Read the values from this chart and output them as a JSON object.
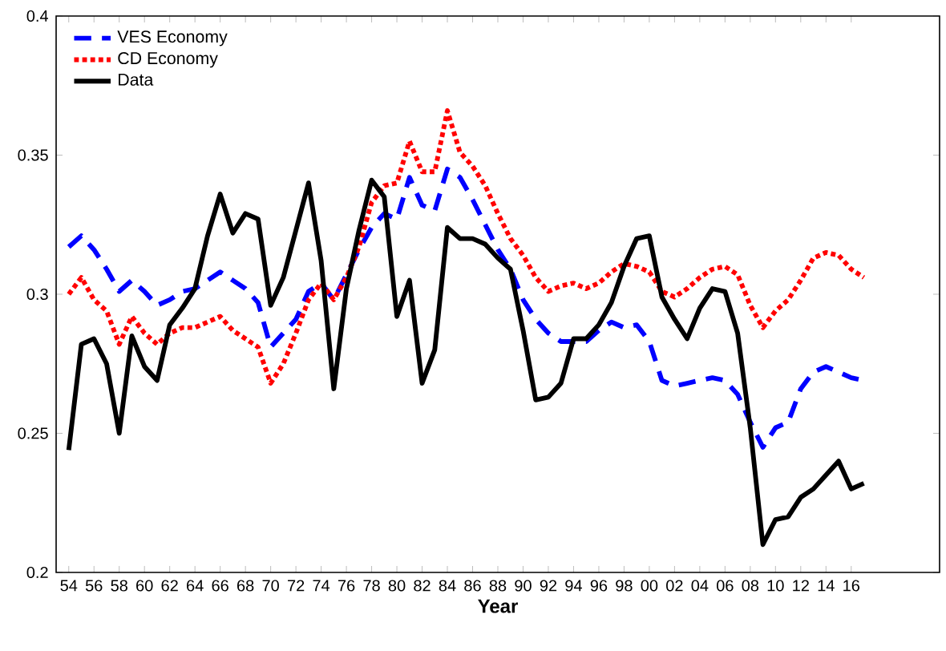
{
  "chart_data": {
    "type": "line",
    "xlabel": "Year",
    "x": [
      1954,
      1955,
      1956,
      1957,
      1958,
      1959,
      1960,
      1961,
      1962,
      1963,
      1964,
      1965,
      1966,
      1967,
      1968,
      1969,
      1970,
      1971,
      1972,
      1973,
      1974,
      1975,
      1976,
      1977,
      1978,
      1979,
      1980,
      1981,
      1982,
      1983,
      1984,
      1985,
      1986,
      1987,
      1988,
      1989,
      1990,
      1991,
      1992,
      1993,
      1994,
      1995,
      1996,
      1997,
      1998,
      1999,
      2000,
      2001,
      2002,
      2003,
      2004,
      2005,
      2006,
      2007,
      2008,
      2009,
      2010,
      2011,
      2012,
      2013,
      2014,
      2015,
      2016,
      2017
    ],
    "series": [
      {
        "name": "VES Economy",
        "color": "#0000ff",
        "line_style": "dashed",
        "values": [
          0.317,
          0.321,
          0.316,
          0.309,
          0.301,
          0.305,
          0.301,
          0.296,
          0.298,
          0.301,
          0.302,
          0.305,
          0.308,
          0.305,
          0.302,
          0.297,
          0.281,
          0.286,
          0.291,
          0.301,
          0.304,
          0.298,
          0.307,
          0.316,
          0.324,
          0.329,
          0.327,
          0.342,
          0.332,
          0.33,
          0.345,
          0.342,
          0.334,
          0.325,
          0.316,
          0.309,
          0.298,
          0.291,
          0.286,
          0.283,
          0.283,
          0.283,
          0.287,
          0.29,
          0.288,
          0.289,
          0.283,
          0.269,
          0.267,
          0.268,
          0.269,
          0.27,
          0.269,
          0.264,
          0.254,
          0.245,
          0.252,
          0.254,
          0.266,
          0.272,
          0.274,
          0.272,
          0.27,
          0.269
        ]
      },
      {
        "name": "CD Economy",
        "color": "#ff0000",
        "line_style": "dotted",
        "values": [
          0.3,
          0.306,
          0.298,
          0.294,
          0.282,
          0.292,
          0.286,
          0.282,
          0.286,
          0.288,
          0.288,
          0.29,
          0.292,
          0.287,
          0.284,
          0.281,
          0.268,
          0.275,
          0.286,
          0.298,
          0.304,
          0.298,
          0.306,
          0.317,
          0.333,
          0.339,
          0.34,
          0.355,
          0.344,
          0.344,
          0.366,
          0.351,
          0.346,
          0.339,
          0.329,
          0.32,
          0.314,
          0.306,
          0.301,
          0.303,
          0.304,
          0.302,
          0.304,
          0.308,
          0.311,
          0.31,
          0.308,
          0.301,
          0.299,
          0.302,
          0.306,
          0.309,
          0.31,
          0.307,
          0.296,
          0.288,
          0.294,
          0.298,
          0.305,
          0.313,
          0.315,
          0.314,
          0.309,
          0.306
        ]
      },
      {
        "name": "Data",
        "color": "#000000",
        "line_style": "solid",
        "values": [
          0.244,
          0.282,
          0.284,
          0.275,
          0.25,
          0.285,
          0.274,
          0.269,
          0.289,
          0.295,
          0.302,
          0.321,
          0.336,
          0.322,
          0.329,
          0.327,
          0.296,
          0.306,
          0.323,
          0.34,
          0.312,
          0.266,
          0.302,
          0.323,
          0.341,
          0.335,
          0.292,
          0.305,
          0.268,
          0.28,
          0.324,
          0.32,
          0.32,
          0.318,
          0.313,
          0.309,
          0.287,
          0.262,
          0.263,
          0.268,
          0.284,
          0.284,
          0.289,
          0.297,
          0.31,
          0.32,
          0.321,
          0.299,
          0.291,
          0.284,
          0.295,
          0.302,
          0.301,
          0.286,
          0.252,
          0.21,
          0.219,
          0.22,
          0.227,
          0.23,
          0.235,
          0.24,
          0.23,
          0.232
        ]
      }
    ],
    "xlim": [
      1953,
      2023
    ],
    "xticks": [
      {
        "value": 1954,
        "label": "54"
      },
      {
        "value": 1956,
        "label": "56"
      },
      {
        "value": 1958,
        "label": "58"
      },
      {
        "value": 1960,
        "label": "60"
      },
      {
        "value": 1962,
        "label": "62"
      },
      {
        "value": 1964,
        "label": "64"
      },
      {
        "value": 1966,
        "label": "66"
      },
      {
        "value": 1968,
        "label": "68"
      },
      {
        "value": 1970,
        "label": "70"
      },
      {
        "value": 1972,
        "label": "72"
      },
      {
        "value": 1974,
        "label": "74"
      },
      {
        "value": 1976,
        "label": "76"
      },
      {
        "value": 1978,
        "label": "78"
      },
      {
        "value": 1980,
        "label": "80"
      },
      {
        "value": 1982,
        "label": "82"
      },
      {
        "value": 1984,
        "label": "84"
      },
      {
        "value": 1986,
        "label": "86"
      },
      {
        "value": 1988,
        "label": "88"
      },
      {
        "value": 1990,
        "label": "90"
      },
      {
        "value": 1992,
        "label": "92"
      },
      {
        "value": 1994,
        "label": "94"
      },
      {
        "value": 1996,
        "label": "96"
      },
      {
        "value": 1998,
        "label": "98"
      },
      {
        "value": 2000,
        "label": "00"
      },
      {
        "value": 2002,
        "label": "02"
      },
      {
        "value": 2004,
        "label": "04"
      },
      {
        "value": 2006,
        "label": "06"
      },
      {
        "value": 2008,
        "label": "08"
      },
      {
        "value": 2010,
        "label": "10"
      },
      {
        "value": 2012,
        "label": "12"
      },
      {
        "value": 2014,
        "label": "14"
      },
      {
        "value": 2016,
        "label": "16"
      }
    ],
    "ylim": [
      0.2,
      0.4
    ],
    "yticks": [
      0.2,
      0.25,
      0.3,
      0.35,
      0.4
    ],
    "grid": false,
    "legend": "top left"
  }
}
